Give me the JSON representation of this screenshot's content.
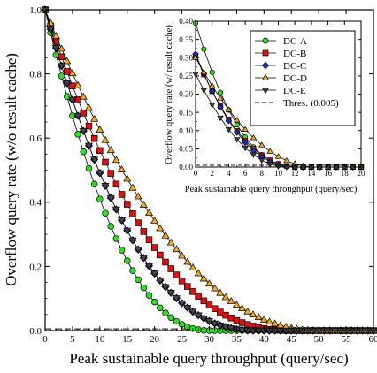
{
  "chart_data": [
    {
      "type": "line",
      "role": "main",
      "xlabel": "Peak sustainable query throughput (query/sec)",
      "ylabel": "Overflow query rate (w/o result cache)",
      "xlim": [
        0,
        60
      ],
      "ylim": [
        0,
        1.0
      ],
      "xticks": [
        0,
        5,
        10,
        15,
        20,
        25,
        30,
        35,
        40,
        45,
        50,
        55,
        60
      ],
      "yticks": [
        0.0,
        0.2,
        0.4,
        0.6,
        0.8,
        1.0
      ],
      "ytick_labels": [
        "0.0",
        "0.2",
        "0.4",
        "0.6",
        "0.8",
        "1.0"
      ],
      "grid": false,
      "threshold": 0.005,
      "series": [
        {
          "name": "DC-A",
          "color": "#33dd22",
          "marker": "circle",
          "x_max": 60,
          "curve": {
            "y0": 1.0,
            "z": 30,
            "p": 2.2
          }
        },
        {
          "name": "DC-B",
          "color": "#dd1111",
          "marker": "square",
          "x_max": 60,
          "curve": {
            "y0": 1.0,
            "z": 45,
            "p": 2.3
          }
        },
        {
          "name": "DC-C",
          "color": "#1a2ecc",
          "marker": "diamond",
          "x_max": 60,
          "curve": {
            "y0": 1.0,
            "z": 39,
            "p": 2.4
          }
        },
        {
          "name": "DC-D",
          "color": "#f2a623",
          "marker": "triangle-up",
          "x_max": 60,
          "curve": {
            "y0": 1.0,
            "z": 50,
            "p": 2.1
          }
        },
        {
          "name": "DC-E",
          "color": "#444444",
          "marker": "triangle-down",
          "x_max": 60,
          "curve": {
            "y0": 1.0,
            "z": 39,
            "p": 2.4
          }
        }
      ]
    },
    {
      "type": "line",
      "role": "inset",
      "xlabel": "Peak sustainable query throughput (query/sec)",
      "ylabel": "Overflow query rate (w/ result cache)",
      "xlim": [
        0,
        20
      ],
      "ylim": [
        0,
        0.4
      ],
      "xticks": [
        0,
        2,
        4,
        6,
        8,
        10,
        12,
        14,
        16,
        18,
        20
      ],
      "yticks": [
        0.0,
        0.05,
        0.1,
        0.15,
        0.2,
        0.25,
        0.3,
        0.35,
        0.4
      ],
      "ytick_labels": [
        "0.00",
        "0.05",
        "0.10",
        "0.15",
        "0.20",
        "0.25",
        "0.30",
        "0.35",
        "0.40"
      ],
      "grid": false,
      "legend_position": "top-right",
      "threshold_label": "Thres. (0.005)",
      "threshold": 0.005,
      "series": [
        {
          "name": "DC-A",
          "color": "#33dd22",
          "marker": "circle",
          "curve": {
            "y0": 0.395,
            "z": 12.5,
            "p": 2.4
          }
        },
        {
          "name": "DC-B",
          "color": "#dd1111",
          "marker": "square",
          "curve": {
            "y0": 0.305,
            "z": 12.5,
            "p": 2.2
          }
        },
        {
          "name": "DC-C",
          "color": "#1a2ecc",
          "marker": "diamond",
          "curve": {
            "y0": 0.31,
            "z": 12.0,
            "p": 2.2
          }
        },
        {
          "name": "DC-D",
          "color": "#f2a623",
          "marker": "triangle-up",
          "curve": {
            "y0": 0.3,
            "z": 14.5,
            "p": 2.0
          }
        },
        {
          "name": "DC-E",
          "color": "#444444",
          "marker": "triangle-down",
          "curve": {
            "y0": 0.255,
            "z": 11.0,
            "p": 2.0
          }
        }
      ]
    }
  ]
}
